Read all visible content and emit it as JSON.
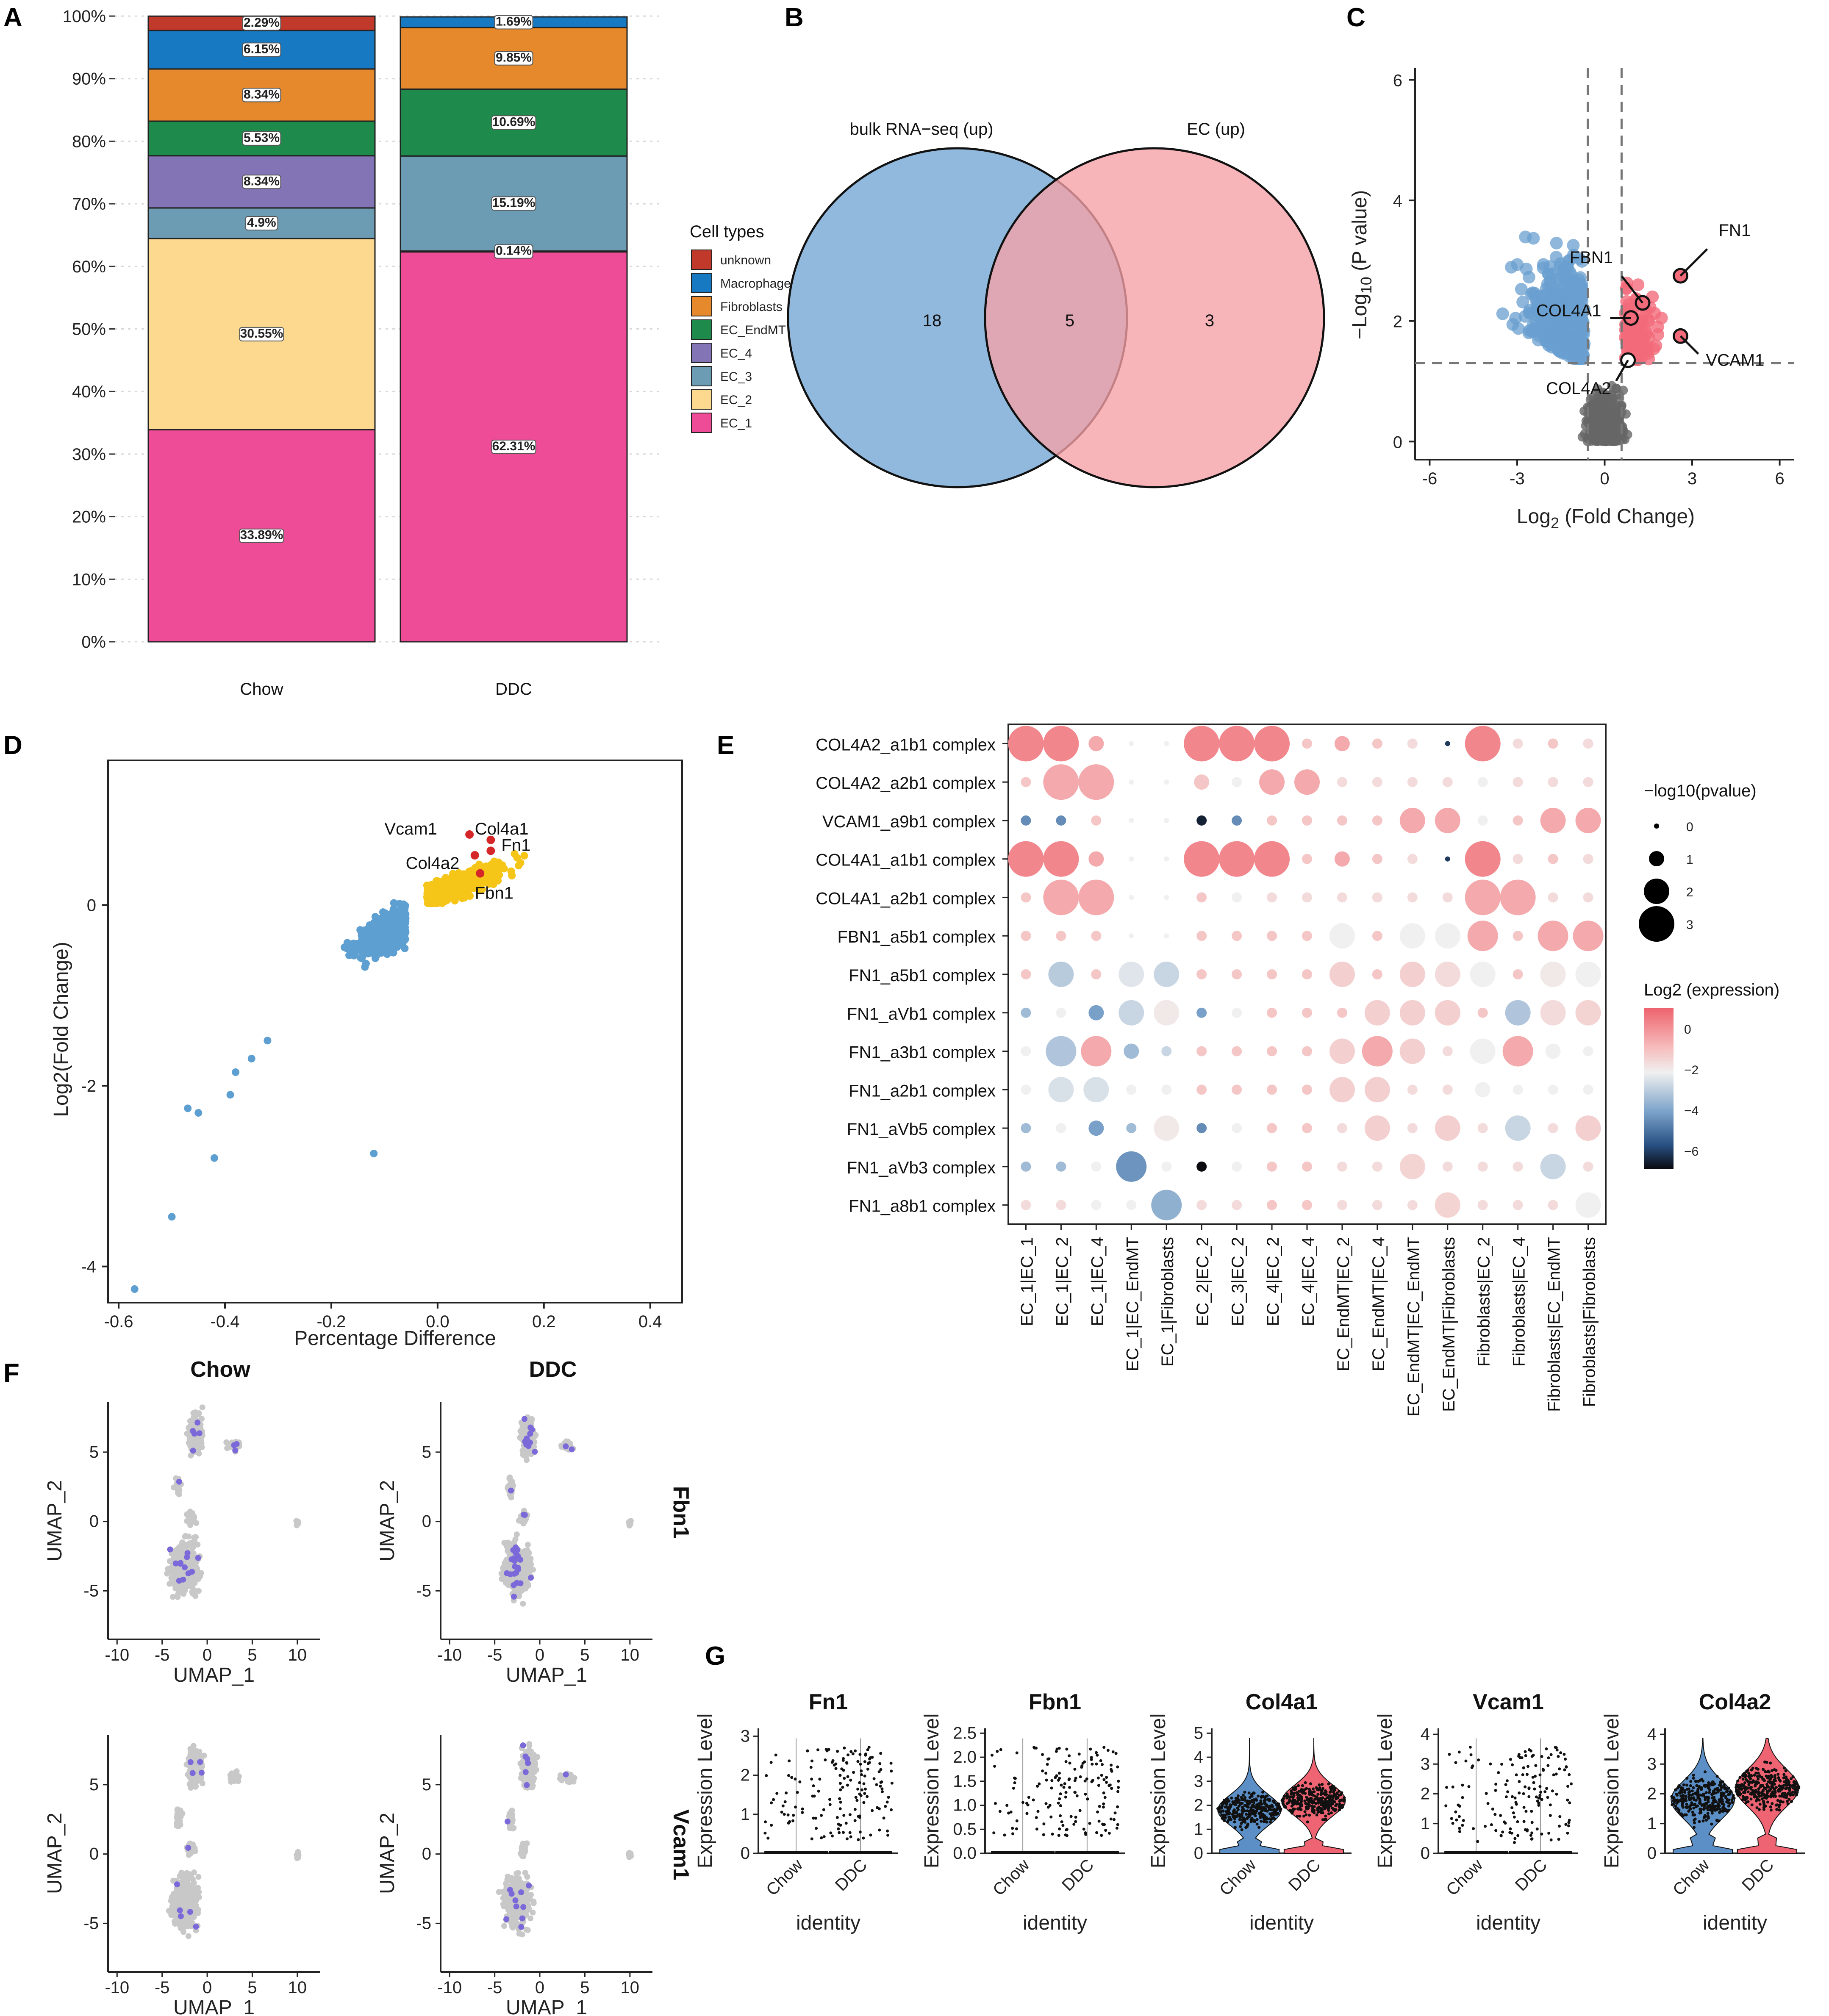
{
  "panels": {
    "A": "A",
    "B": "B",
    "C": "C",
    "D": "D",
    "E": "E",
    "F": "F",
    "G": "G"
  },
  "chart_data": [
    {
      "id": "A",
      "type": "bar",
      "stacked": true,
      "categories": [
        "Chow",
        "DDC"
      ],
      "yticks": [
        "0%",
        "10%",
        "20%",
        "30%",
        "40%",
        "50%",
        "60%",
        "70%",
        "80%",
        "90%",
        "100%"
      ],
      "legend_title": "Cell types",
      "series": [
        {
          "name": "EC_1",
          "color": "#ee4c96",
          "values": [
            33.89,
            62.31
          ],
          "labels": [
            "33.89%",
            "62.31%"
          ]
        },
        {
          "name": "EC_2",
          "color": "#fdd990",
          "values": [
            30.55,
            0.14
          ],
          "labels": [
            "30.55%",
            "0.14%"
          ]
        },
        {
          "name": "EC_3",
          "color": "#6c9cb3",
          "values": [
            4.9,
            15.19
          ],
          "labels": [
            "4.9%",
            "15.19%"
          ]
        },
        {
          "name": "EC_4",
          "color": "#8374b6",
          "values": [
            8.34,
            0
          ],
          "labels": [
            "8.34%",
            ""
          ]
        },
        {
          "name": "EC_EndMT",
          "color": "#1e8a4b",
          "values": [
            5.53,
            10.69
          ],
          "labels": [
            "5.53%",
            "10.69%"
          ]
        },
        {
          "name": "Fibroblasts",
          "color": "#e5892c",
          "values": [
            8.34,
            9.85
          ],
          "labels": [
            "8.34%",
            "9.85%"
          ]
        },
        {
          "name": "Macrophages",
          "color": "#1679c2",
          "values": [
            6.15,
            1.69
          ],
          "labels": [
            "6.15%",
            "1.69%"
          ]
        },
        {
          "name": "unknown",
          "color": "#c0392b",
          "values": [
            2.29,
            0
          ],
          "labels": [
            "2.29%",
            ""
          ]
        }
      ]
    },
    {
      "id": "B",
      "type": "venn",
      "sets": [
        {
          "name": "bulk RNA−seq (up)",
          "color": "#90b9dd"
        },
        {
          "name": "EC (up)",
          "color": "#f5a0a7"
        }
      ],
      "counts": {
        "left_only": "18",
        "both": "5",
        "right_only": "3"
      }
    },
    {
      "id": "C",
      "type": "scatter",
      "xlabel_main": "Log",
      "xlabel_sub": "2",
      "xlabel_rest": " (Fold Change)",
      "ylabel_main": "−Log",
      "ylabel_sub": "10",
      "ylabel_rest": " (P value)",
      "xlim": [
        -6.5,
        6.5
      ],
      "ylim": [
        -0.3,
        6.2
      ],
      "xticks": [
        "-6",
        "-3",
        "0",
        "3",
        "6"
      ],
      "xtick_values": [
        -6,
        -3,
        0,
        3,
        6
      ],
      "yticks": [
        "0",
        "2",
        "4",
        "6"
      ],
      "ytick_values": [
        0,
        2,
        4,
        6
      ],
      "thresholds": {
        "x": [
          -0.58,
          0.58
        ],
        "y": 1.3
      },
      "colors": {
        "up": "#f26b7a",
        "down": "#6a9fd0",
        "ns": "#666666"
      },
      "labeled_points": [
        {
          "label": "FN1",
          "x": 2.6,
          "y": 2.75
        },
        {
          "label": "FBN1",
          "x": 1.3,
          "y": 2.3
        },
        {
          "label": "COL4A1",
          "x": 0.9,
          "y": 2.05
        },
        {
          "label": "VCAM1",
          "x": 2.6,
          "y": 1.75
        },
        {
          "label": "COL4A2",
          "x": 0.8,
          "y": 1.35
        }
      ]
    },
    {
      "id": "D",
      "type": "scatter",
      "xlabel": "Percentage Difference",
      "ylabel": "Log2(Fold Change)",
      "xlim": [
        -0.62,
        0.46
      ],
      "ylim": [
        -4.4,
        1.6
      ],
      "xticks": [
        "-0.6",
        "-0.4",
        "-0.2",
        "0.0",
        "0.2",
        "0.4"
      ],
      "xtick_values": [
        -0.6,
        -0.4,
        -0.2,
        0,
        0.2,
        0.4
      ],
      "yticks": [
        "-4",
        "-2",
        "0"
      ],
      "ytick_values": [
        -4,
        -2,
        0
      ],
      "colors": {
        "up": "#f5c518",
        "down": "#5e9fd1",
        "highlight": "#d62728"
      },
      "labeled_points": [
        {
          "label": "Vcam1",
          "x": 0.06,
          "y": 0.78
        },
        {
          "label": "Col4a1",
          "x": 0.1,
          "y": 0.72
        },
        {
          "label": "Fn1",
          "x": 0.1,
          "y": 0.6
        },
        {
          "label": "Col4a2",
          "x": 0.07,
          "y": 0.55
        },
        {
          "label": "Fbn1",
          "x": 0.08,
          "y": 0.35
        }
      ]
    },
    {
      "id": "E",
      "type": "dotplot",
      "rows": [
        "COL4A2_a1b1 complex",
        "COL4A2_a2b1 complex",
        "VCAM1_a9b1 complex",
        "COL4A1_a1b1 complex",
        "COL4A1_a2b1 complex",
        "FBN1_a5b1 complex",
        "FN1_a5b1 complex",
        "FN1_aVb1 complex",
        "FN1_a3b1 complex",
        "FN1_a2b1 complex",
        "FN1_aVb5 complex",
        "FN1_aVb3 complex",
        "FN1_a8b1 complex"
      ],
      "columns": [
        "EC_1|EC_1",
        "EC_1|EC_2",
        "EC_1|EC_4",
        "EC_1|EC_EndMT",
        "EC_1|Fibroblasts",
        "EC_2|EC_2",
        "EC_3|EC_2",
        "EC_4|EC_2",
        "EC_4|EC_4",
        "EC_EndMT|EC_2",
        "EC_EndMT|EC_4",
        "EC_EndMT|EC_EndMT",
        "EC_EndMT|Fibroblasts",
        "Fibroblasts|EC_2",
        "Fibroblasts|EC_4",
        "Fibroblasts|EC_EndMT",
        "Fibroblasts|Fibroblasts"
      ],
      "size_legend_title": "−log10(pvalue)",
      "size_legend": [
        "0",
        "1",
        "2",
        "3"
      ],
      "color_legend_title": "Log2 (expression)",
      "color_legend": [
        "0",
        "−2",
        "−4",
        "−6"
      ],
      "pvalue_matrix": [
        [
          3,
          3,
          1,
          0,
          0,
          3,
          3,
          3,
          0.5,
          1,
          0.5,
          0.5,
          0,
          3,
          0.5,
          0.5,
          0.5
        ],
        [
          0.5,
          3,
          3,
          0,
          0,
          1,
          0.5,
          2,
          2,
          0.5,
          0.5,
          0.5,
          0.5,
          0.5,
          0.5,
          0.5,
          0.5
        ],
        [
          0.5,
          0.5,
          0.5,
          0,
          0,
          0.5,
          0.5,
          0.5,
          0.5,
          0.5,
          0.5,
          2,
          2,
          0.5,
          0.5,
          2,
          2
        ],
        [
          3,
          3,
          1,
          0,
          0,
          3,
          3,
          3,
          0.5,
          1,
          0.5,
          0.5,
          0,
          3,
          0.5,
          0.5,
          0.5
        ],
        [
          0.5,
          3,
          3,
          0,
          0,
          0.5,
          0.5,
          0.5,
          0.5,
          0.5,
          0.5,
          0.5,
          0.5,
          3,
          3,
          0.5,
          0.5
        ],
        [
          0.5,
          0.5,
          0.5,
          0,
          0,
          0.5,
          0.5,
          0.5,
          0.5,
          2,
          0.5,
          2,
          2,
          2.5,
          0.5,
          2.5,
          2.5
        ],
        [
          0.5,
          2,
          0.5,
          2,
          2,
          0.5,
          0.5,
          0.5,
          0.5,
          2,
          0.5,
          2,
          2,
          2,
          0.5,
          2,
          2
        ],
        [
          0.5,
          0.5,
          1,
          2,
          2,
          0.5,
          0.5,
          0.5,
          0.5,
          0.5,
          2,
          2,
          2,
          0.5,
          2,
          2,
          2
        ],
        [
          0.5,
          2.5,
          2.5,
          1,
          0.5,
          0.5,
          0.5,
          0.5,
          0.5,
          2,
          2.5,
          2,
          0.5,
          2,
          2.5,
          1,
          0.5
        ],
        [
          0.5,
          2,
          2,
          0.5,
          0.5,
          0.5,
          0.5,
          0.5,
          0.5,
          2,
          2,
          0.5,
          0.5,
          1,
          0.5,
          0.5,
          0.5
        ],
        [
          0.5,
          0.5,
          1,
          0.5,
          2,
          0.5,
          0.5,
          0.5,
          0.5,
          0.5,
          2,
          0.5,
          2,
          0.5,
          2,
          0.5,
          2
        ],
        [
          0.5,
          0.5,
          0.5,
          2.5,
          0.5,
          0.5,
          0.5,
          0.5,
          0.5,
          0.5,
          0.5,
          2,
          0.5,
          0.5,
          0.5,
          2,
          0.5
        ],
        [
          0.5,
          0.5,
          0.5,
          0.5,
          2.5,
          0.5,
          0.5,
          0.5,
          0.5,
          0.5,
          0.5,
          0.5,
          2,
          0.5,
          0.5,
          0.5,
          2
        ]
      ],
      "expression_matrix": [
        [
          0,
          0,
          -0.5,
          -2,
          -2,
          0,
          0,
          0,
          -1,
          -0.5,
          -1,
          -1.5,
          -6,
          0,
          -1.5,
          -1,
          -1.5
        ],
        [
          -1,
          -0.5,
          -0.5,
          -2,
          -2,
          -1,
          -2,
          -0.5,
          -0.5,
          -1.5,
          -1.5,
          -1.5,
          -1.5,
          -2,
          -1.5,
          -1.5,
          -1.5
        ],
        [
          -4,
          -4,
          -1,
          -2,
          -2,
          -6.5,
          -4,
          -1,
          -1,
          -1,
          -1,
          -0.5,
          -0.5,
          -2,
          -1,
          -0.5,
          -0.5
        ],
        [
          0,
          0,
          -0.5,
          -2,
          -2,
          0,
          0,
          0,
          -1,
          -0.5,
          -1,
          -1.5,
          -6,
          0,
          -1.5,
          -1,
          -1.5
        ],
        [
          -1,
          -0.5,
          -0.5,
          -2,
          -2,
          -1,
          -2,
          -1.5,
          -1.5,
          -1.5,
          -1.5,
          -1.5,
          -1.5,
          -0.5,
          -0.5,
          -1.5,
          -1.5
        ],
        [
          -1,
          -1,
          -1,
          -2,
          -2,
          -1,
          -1,
          -1,
          -1,
          -2,
          -1,
          -2,
          -2,
          -0.5,
          -1,
          -0.5,
          -0.5
        ],
        [
          -1,
          -2.7,
          -1,
          -2.2,
          -2.5,
          -1,
          -1,
          -1,
          -1,
          -1.2,
          -1,
          -1.2,
          -1.5,
          -2,
          -1,
          -1.8,
          -2
        ],
        [
          -3,
          -2,
          -3.5,
          -2.5,
          -1.8,
          -3.5,
          -2,
          -1,
          -1,
          -1,
          -1.2,
          -1.2,
          -1.2,
          -1,
          -2.8,
          -1.5,
          -1.3
        ],
        [
          -2,
          -2.8,
          -0.5,
          -3,
          -2.5,
          -1,
          -1,
          -1,
          -1,
          -1.2,
          -0.5,
          -1.2,
          -1.5,
          -2,
          -0.5,
          -2,
          -2
        ],
        [
          -2,
          -2.3,
          -2.3,
          -2,
          -2,
          -1,
          -1,
          -1,
          -1,
          -1.2,
          -1.2,
          -1.5,
          -1.5,
          -2,
          -2,
          -2,
          -2
        ],
        [
          -3,
          -2,
          -3.5,
          -3,
          -1.8,
          -4,
          -2,
          -1,
          -1,
          -1.5,
          -1.2,
          -1.5,
          -1.2,
          -1.5,
          -2.5,
          -1.5,
          -1.2
        ],
        [
          -3,
          -3,
          -2,
          -3.8,
          -2,
          -7,
          -2,
          -1,
          -1,
          -1.5,
          -1.5,
          -1.3,
          -1.5,
          -1.5,
          -1.5,
          -2.5,
          -1.5
        ],
        [
          -1.5,
          -1.5,
          -2,
          -2,
          -3.2,
          -1.5,
          -1.5,
          -1,
          -1,
          -1.5,
          -1.5,
          -1.5,
          -1.3,
          -1.5,
          -1.5,
          -1.5,
          -2
        ]
      ]
    },
    {
      "id": "F",
      "type": "scatter",
      "subtype": "umap",
      "columns": [
        "Chow",
        "DDC"
      ],
      "rows": [
        "Fbn1",
        "Vcam1"
      ],
      "xlabel": "UMAP_1",
      "ylabel": "UMAP_2",
      "xticks": [
        "-10",
        "-5",
        "0",
        "5",
        "10"
      ],
      "xtick_values": [
        -10,
        -5,
        0,
        5,
        10
      ],
      "yticks": [
        "-5",
        "0",
        "5"
      ],
      "ytick_values": [
        -5,
        0,
        5
      ],
      "colors": {
        "bg": "#c8c8c8",
        "expr": "#7b68d9"
      }
    },
    {
      "id": "G",
      "type": "violin",
      "genes": [
        {
          "name": "Fn1",
          "yticks": [
            "0",
            "1",
            "2",
            "3"
          ],
          "ytick_values": [
            0,
            1,
            2,
            3
          ],
          "ymax": 3.2,
          "style": "dots"
        },
        {
          "name": "Fbn1",
          "yticks": [
            "0.0",
            "0.5",
            "1.0",
            "1.5",
            "2.0",
            "2.5"
          ],
          "ytick_values": [
            0,
            0.5,
            1,
            1.5,
            2,
            2.5
          ],
          "ymax": 2.6,
          "style": "dots"
        },
        {
          "name": "Col4a1",
          "yticks": [
            "0",
            "1",
            "2",
            "3",
            "4",
            "5"
          ],
          "ytick_values": [
            0,
            1,
            2,
            3,
            4,
            5
          ],
          "ymax": 5.2,
          "style": "violin"
        },
        {
          "name": "Vcam1",
          "yticks": [
            "0",
            "1",
            "2",
            "3",
            "4"
          ],
          "ytick_values": [
            0,
            1,
            2,
            3,
            4
          ],
          "ymax": 4.2,
          "style": "dots"
        },
        {
          "name": "Col4a2",
          "yticks": [
            "0",
            "1",
            "2",
            "3",
            "4"
          ],
          "ytick_values": [
            0,
            1,
            2,
            3,
            4
          ],
          "ymax": 4.2,
          "style": "violin"
        }
      ],
      "categories": [
        "Chow",
        "DDC"
      ],
      "colors": {
        "Chow": "#5b8fc5",
        "DDC": "#ef6472"
      },
      "xlabel": "identity",
      "ylabel": "Expression Level"
    }
  ]
}
